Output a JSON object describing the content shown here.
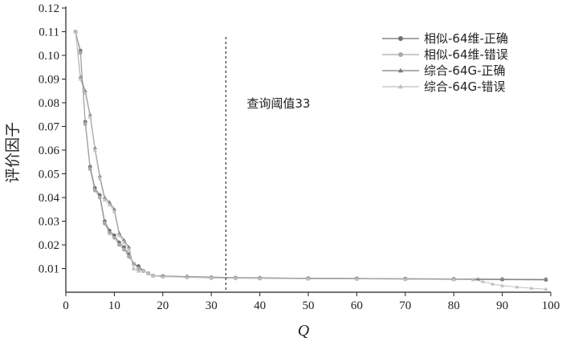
{
  "chart_data": {
    "type": "line",
    "title": "",
    "xlabel": "Q",
    "ylabel": "评价因子",
    "xlim": [
      0,
      100
    ],
    "ylim": [
      0,
      0.12
    ],
    "xticks": [
      0,
      10,
      20,
      30,
      40,
      50,
      60,
      70,
      80,
      90,
      100
    ],
    "yticks": [
      0.01,
      0.02,
      0.03,
      0.04,
      0.05,
      0.06,
      0.07,
      0.08,
      0.09,
      0.1,
      0.11,
      0.12
    ],
    "ytick_labels": [
      "0.01",
      "0.02",
      "0.03",
      "0.04",
      "0.05",
      "0.06",
      "0.07",
      "0.08",
      "0.09",
      "0.10",
      "0.11",
      "0.12"
    ],
    "legend_position": "top-right",
    "annotation": {
      "text": "查询阈值33",
      "x": 33
    },
    "series": [
      {
        "name": "相似-64维-正确",
        "marker": "circle",
        "color": "#6f6f6f",
        "points": [
          [
            2,
            0.11
          ],
          [
            3,
            0.102
          ],
          [
            4,
            0.072
          ],
          [
            5,
            0.053
          ],
          [
            6,
            0.044
          ],
          [
            7,
            0.041
          ],
          [
            8,
            0.03
          ],
          [
            9,
            0.026
          ],
          [
            10,
            0.024
          ],
          [
            11,
            0.021
          ],
          [
            12,
            0.019
          ],
          [
            13,
            0.016
          ],
          [
            14,
            0.012
          ],
          [
            15,
            0.011
          ],
          [
            16,
            0.009
          ],
          [
            17,
            0.008
          ],
          [
            18,
            0.007
          ],
          [
            20,
            0.0068
          ],
          [
            25,
            0.0065
          ],
          [
            30,
            0.0062
          ],
          [
            35,
            0.0061
          ],
          [
            40,
            0.006
          ],
          [
            50,
            0.0059
          ],
          [
            60,
            0.0058
          ],
          [
            70,
            0.0057
          ],
          [
            80,
            0.0056
          ],
          [
            90,
            0.0055
          ],
          [
            99,
            0.0054
          ]
        ]
      },
      {
        "name": "相似-64维-错误",
        "marker": "circle",
        "color": "#a9a9a9",
        "points": [
          [
            2,
            0.11
          ],
          [
            3,
            0.101
          ],
          [
            4,
            0.071
          ],
          [
            5,
            0.052
          ],
          [
            6,
            0.043
          ],
          [
            7,
            0.04
          ],
          [
            8,
            0.029
          ],
          [
            9,
            0.025
          ],
          [
            10,
            0.023
          ],
          [
            11,
            0.02
          ],
          [
            12,
            0.018
          ],
          [
            13,
            0.015
          ],
          [
            14,
            0.012
          ],
          [
            15,
            0.01
          ],
          [
            16,
            0.009
          ],
          [
            17,
            0.008
          ],
          [
            18,
            0.007
          ],
          [
            20,
            0.0066
          ],
          [
            25,
            0.0063
          ],
          [
            30,
            0.006
          ],
          [
            35,
            0.0059
          ],
          [
            40,
            0.0058
          ],
          [
            50,
            0.0057
          ],
          [
            60,
            0.0056
          ],
          [
            70,
            0.0055
          ],
          [
            80,
            0.0054
          ],
          [
            90,
            0.0053
          ],
          [
            99,
            0.0052
          ]
        ]
      },
      {
        "name": "综合-64G-正确",
        "marker": "triangle",
        "color": "#7d7d7d",
        "points": [
          [
            2,
            0.11
          ],
          [
            3,
            0.091
          ],
          [
            4,
            0.085
          ],
          [
            5,
            0.075
          ],
          [
            6,
            0.061
          ],
          [
            7,
            0.049
          ],
          [
            8,
            0.04
          ],
          [
            9,
            0.038
          ],
          [
            10,
            0.035
          ],
          [
            11,
            0.025
          ],
          [
            12,
            0.022
          ],
          [
            13,
            0.019
          ],
          [
            14,
            0.01
          ],
          [
            15,
            0.009
          ],
          [
            16,
            0.009
          ],
          [
            17,
            0.008
          ],
          [
            18,
            0.007
          ],
          [
            20,
            0.0068
          ],
          [
            25,
            0.0066
          ],
          [
            30,
            0.0064
          ],
          [
            35,
            0.0062
          ],
          [
            40,
            0.0061
          ],
          [
            50,
            0.0059
          ],
          [
            60,
            0.0058
          ],
          [
            70,
            0.0057
          ],
          [
            80,
            0.0056
          ],
          [
            85,
            0.0055
          ],
          [
            90,
            0.0054
          ],
          [
            99,
            0.0053
          ]
        ]
      },
      {
        "name": "综合-64G-错误",
        "marker": "triangle",
        "color": "#c0c0c0",
        "points": [
          [
            2,
            0.11
          ],
          [
            3,
            0.09
          ],
          [
            4,
            0.084
          ],
          [
            5,
            0.074
          ],
          [
            6,
            0.06
          ],
          [
            7,
            0.048
          ],
          [
            8,
            0.039
          ],
          [
            9,
            0.037
          ],
          [
            10,
            0.034
          ],
          [
            11,
            0.024
          ],
          [
            12,
            0.021
          ],
          [
            13,
            0.018
          ],
          [
            14,
            0.01
          ],
          [
            15,
            0.009
          ],
          [
            16,
            0.009
          ],
          [
            17,
            0.008
          ],
          [
            18,
            0.007
          ],
          [
            20,
            0.0066
          ],
          [
            25,
            0.0064
          ],
          [
            30,
            0.0062
          ],
          [
            35,
            0.006
          ],
          [
            40,
            0.0059
          ],
          [
            50,
            0.0057
          ],
          [
            60,
            0.0056
          ],
          [
            70,
            0.0055
          ],
          [
            80,
            0.0054
          ],
          [
            84,
            0.0053
          ],
          [
            86,
            0.0045
          ],
          [
            88,
            0.0035
          ],
          [
            90,
            0.0028
          ],
          [
            93,
            0.0022
          ],
          [
            96,
            0.0017
          ],
          [
            99,
            0.0013
          ]
        ]
      }
    ]
  }
}
